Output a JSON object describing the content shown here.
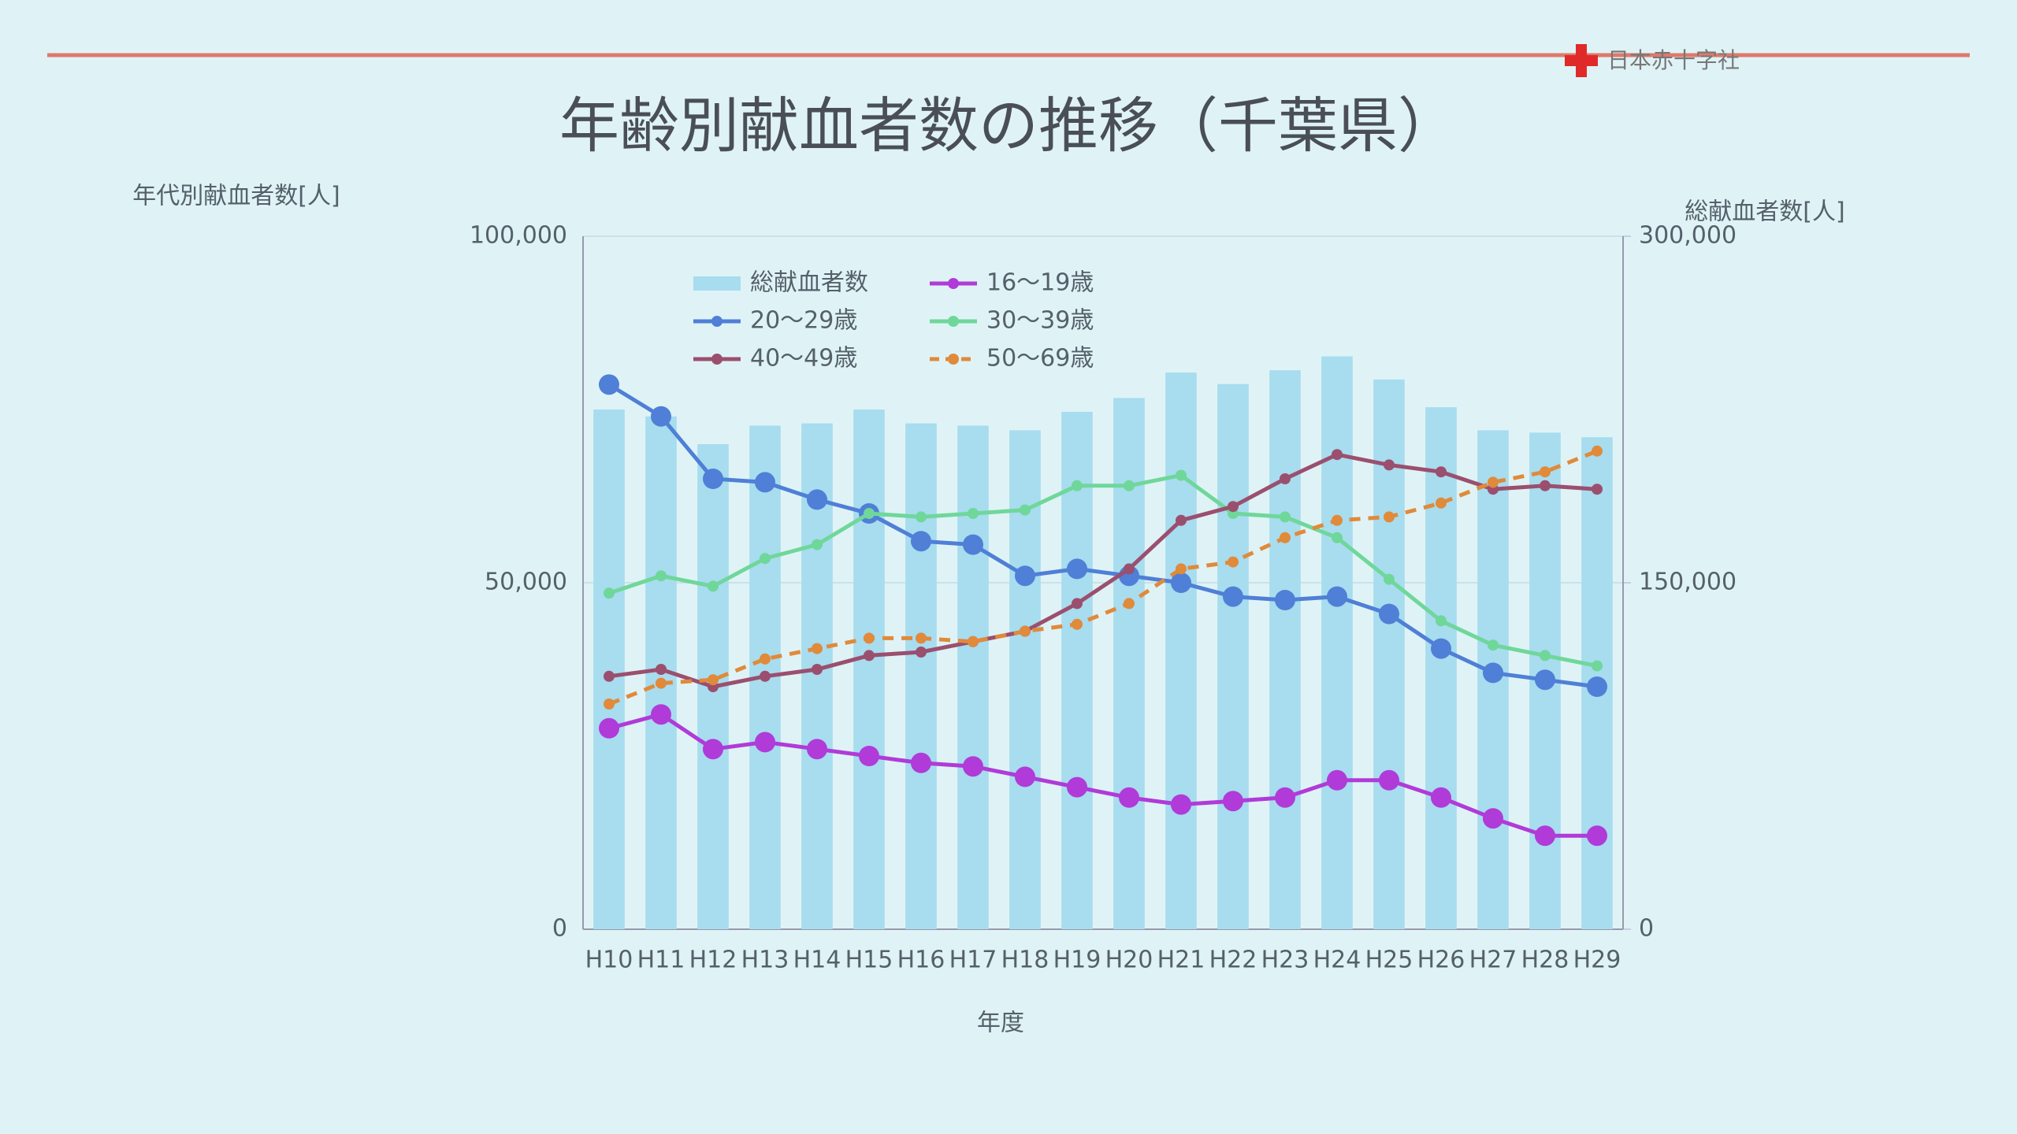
{
  "chart_data": {
    "type": "combo",
    "title": "年齢別献血者数の推移（千葉県）",
    "organization": "日本赤十字社",
    "y_label": "年代別献血者数[人]",
    "y2_label": "総献血者数[人]",
    "x_label": "年度",
    "categories": [
      "H10",
      "H11",
      "H12",
      "H13",
      "H14",
      "H15",
      "H16",
      "H17",
      "H18",
      "H19",
      "H20",
      "H21",
      "H22",
      "H23",
      "H24",
      "H25",
      "H26",
      "H27",
      "H28",
      "H29"
    ],
    "ylim": [
      0,
      100000
    ],
    "yticks": [
      0,
      {
        "value": 50000,
        "label": "50,000"
      },
      {
        "value": 100000,
        "label": "100,000"
      }
    ],
    "y2lim": [
      0,
      300000
    ],
    "y2ticks": [
      0,
      {
        "value": 150000,
        "label": "150,000"
      },
      {
        "value": 300000,
        "label": "300,000"
      }
    ],
    "grid": true,
    "legend": "upper left",
    "series": [
      {
        "name": "総献血者数",
        "type": "bar",
        "axis": "y2",
        "color": "#a8dcef",
        "values": [
          225000,
          222000,
          210000,
          218000,
          219000,
          225000,
          219000,
          218000,
          216000,
          224000,
          230000,
          241000,
          236000,
          242000,
          248000,
          238000,
          226000,
          216000,
          215000,
          213000
        ]
      },
      {
        "name": "16～19歳",
        "type": "line",
        "color": "#b03bd8",
        "marker": "large",
        "values": [
          29000,
          31000,
          26000,
          27000,
          26000,
          25000,
          24000,
          23500,
          22000,
          20500,
          19000,
          18000,
          18500,
          19000,
          21500,
          21500,
          19000,
          16000,
          13500,
          13500
        ]
      },
      {
        "name": "20～29歳",
        "type": "line",
        "color": "#4f7fd6",
        "marker": "large",
        "values": [
          78600,
          74000,
          65000,
          64500,
          62000,
          60000,
          56000,
          55500,
          51000,
          52000,
          51000,
          50000,
          48000,
          47500,
          48000,
          45500,
          40500,
          37000,
          36000,
          35000
        ]
      },
      {
        "name": "30～39歳",
        "type": "line",
        "color": "#6fd79a",
        "marker": "small",
        "values": [
          48500,
          51000,
          49500,
          53500,
          55500,
          60000,
          59500,
          60000,
          60500,
          64000,
          64000,
          65500,
          60000,
          59500,
          56500,
          50500,
          44500,
          41000,
          39500,
          38000
        ]
      },
      {
        "name": "40～49歳",
        "type": "line",
        "color": "#9b4f6e",
        "marker": "small",
        "values": [
          36500,
          37500,
          35000,
          36500,
          37500,
          39500,
          40000,
          41500,
          43000,
          47000,
          52000,
          59000,
          61000,
          65000,
          68500,
          67000,
          66000,
          63500,
          64000,
          63500
        ]
      },
      {
        "name": "50～69歳",
        "type": "line",
        "color": "#e08a3a",
        "marker": "small",
        "dashed": true,
        "values": [
          32500,
          35500,
          36000,
          39000,
          40500,
          42000,
          42000,
          41500,
          43000,
          44000,
          47000,
          52000,
          53000,
          56500,
          59000,
          59500,
          61500,
          64500,
          66000,
          69000
        ]
      }
    ]
  }
}
